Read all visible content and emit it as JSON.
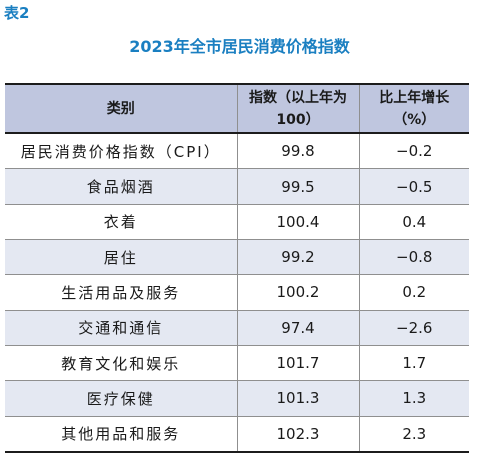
{
  "table_label": "表2",
  "title": "2023年全市居民消费价格指数",
  "headers": {
    "category": "类别",
    "index_line1": "指数（以上年为",
    "index_line2": "100）",
    "growth_line1": "比上年增长",
    "growth_line2": "（%）"
  },
  "rows": [
    {
      "category": "居民消费价格指数（CPI）",
      "index": "99.8",
      "growth": "−0.2"
    },
    {
      "category": "食品烟酒",
      "index": "99.5",
      "growth": "−0.5"
    },
    {
      "category": "衣着",
      "index": "100.4",
      "growth": "0.4"
    },
    {
      "category": "居住",
      "index": "99.2",
      "growth": "−0.8"
    },
    {
      "category": "生活用品及服务",
      "index": "100.2",
      "growth": "0.2"
    },
    {
      "category": "交通和通信",
      "index": "97.4",
      "growth": "−2.6"
    },
    {
      "category": "教育文化和娱乐",
      "index": "101.7",
      "growth": "1.7"
    },
    {
      "category": "医疗保健",
      "index": "101.3",
      "growth": "1.3"
    },
    {
      "category": "其他用品和服务",
      "index": "102.3",
      "growth": "2.3"
    }
  ],
  "colors": {
    "accent": "#1a7fc1",
    "header_bg": "#bfc6df",
    "shaded_row_bg": "#e4e8f2"
  }
}
